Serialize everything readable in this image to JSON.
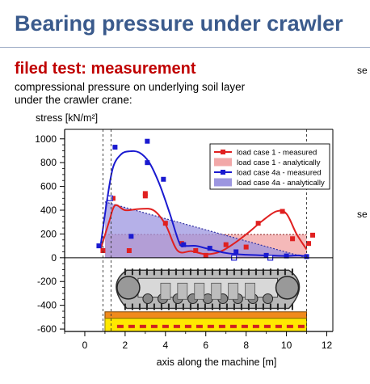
{
  "page": {
    "title": "Bearing pressure under crawler",
    "subtitle": "filed test: measurement",
    "description_line1": "compressional pressure on underlying soil layer",
    "description_line2": "under the crawler crane:",
    "side_text_1": "se",
    "side_text_2": "se"
  },
  "chart_data": {
    "type": "line",
    "xlabel": "axis along the machine [m]",
    "ylabel": "stress [kN/m²]",
    "xlim": [
      -1,
      12.3
    ],
    "ylim": [
      -620,
      1080
    ],
    "xticks": [
      0,
      2,
      4,
      6,
      8,
      10,
      12
    ],
    "yticks": [
      1000,
      800,
      600,
      400,
      200,
      0,
      -200,
      -400,
      -600
    ],
    "grid": false,
    "legend_position": "top-right",
    "colors": {
      "red": "#e02020",
      "blue": "#1a1ad0",
      "red_fill": "#f2a8a8",
      "blue_fill": "#9c96e0",
      "axis": "#000000",
      "track_orange": "#f08a1c",
      "track_yellow": "#ffe800"
    },
    "legend": [
      "load case 1 - measured",
      "load case 1 - analytically",
      "load case 4a - measured",
      "load case 4a - analytically"
    ],
    "series": [
      {
        "name": "load case 1 - measured",
        "kind": "curve",
        "x": [
          0.8,
          1.2,
          1.5,
          2.0,
          2.7,
          3.4,
          4.0,
          4.6,
          5.3,
          6.0,
          6.7,
          7.4,
          8.1,
          8.8,
          9.5,
          10.0,
          10.5,
          11.0
        ],
        "y": [
          80,
          300,
          440,
          400,
          410,
          400,
          280,
          60,
          55,
          30,
          50,
          120,
          210,
          310,
          390,
          370,
          200,
          70
        ]
      },
      {
        "name": "load case 1 - measured (points)",
        "kind": "points",
        "x": [
          0.9,
          1.4,
          2.2,
          3.0,
          3.0,
          4.0,
          4.8,
          5.5,
          6.0,
          7.0,
          8.0,
          8.6,
          9.8,
          10.3,
          11.1,
          11.3
        ],
        "y": [
          60,
          500,
          60,
          520,
          540,
          290,
          120,
          60,
          20,
          110,
          90,
          290,
          390,
          160,
          120,
          190
        ]
      },
      {
        "name": "load case 4a - measured",
        "kind": "curve",
        "x": [
          0.8,
          1.1,
          1.4,
          1.8,
          2.2,
          2.7,
          3.2,
          3.7,
          4.2,
          4.7,
          5.0,
          5.5,
          6.0,
          7.0,
          8.0,
          9.0,
          10.0,
          10.6,
          11.0
        ],
        "y": [
          120,
          480,
          760,
          870,
          895,
          885,
          800,
          620,
          380,
          120,
          100,
          100,
          80,
          40,
          25,
          20,
          15,
          20,
          10
        ]
      },
      {
        "name": "load case 4a - measured (points)",
        "kind": "points",
        "x": [
          0.7,
          1.5,
          2.3,
          3.1,
          3.1,
          3.9,
          4.9,
          6.2,
          7.5,
          9.0,
          10.0,
          11.0
        ],
        "y": [
          100,
          930,
          180,
          980,
          800,
          660,
          110,
          80,
          50,
          20,
          15,
          10
        ]
      },
      {
        "name": "load case 1 - analytically",
        "kind": "area",
        "x": [
          1.0,
          1.0,
          11.0,
          11.0
        ],
        "y": [
          0,
          195,
          195,
          0
        ]
      },
      {
        "name": "load case 4a - analytically",
        "kind": "area",
        "x": [
          1.0,
          1.0,
          11.0,
          11.0
        ],
        "y": [
          0,
          470,
          0,
          0
        ]
      }
    ],
    "reference_lines_x": [
      0.9,
      1.3,
      11.0
    ]
  }
}
